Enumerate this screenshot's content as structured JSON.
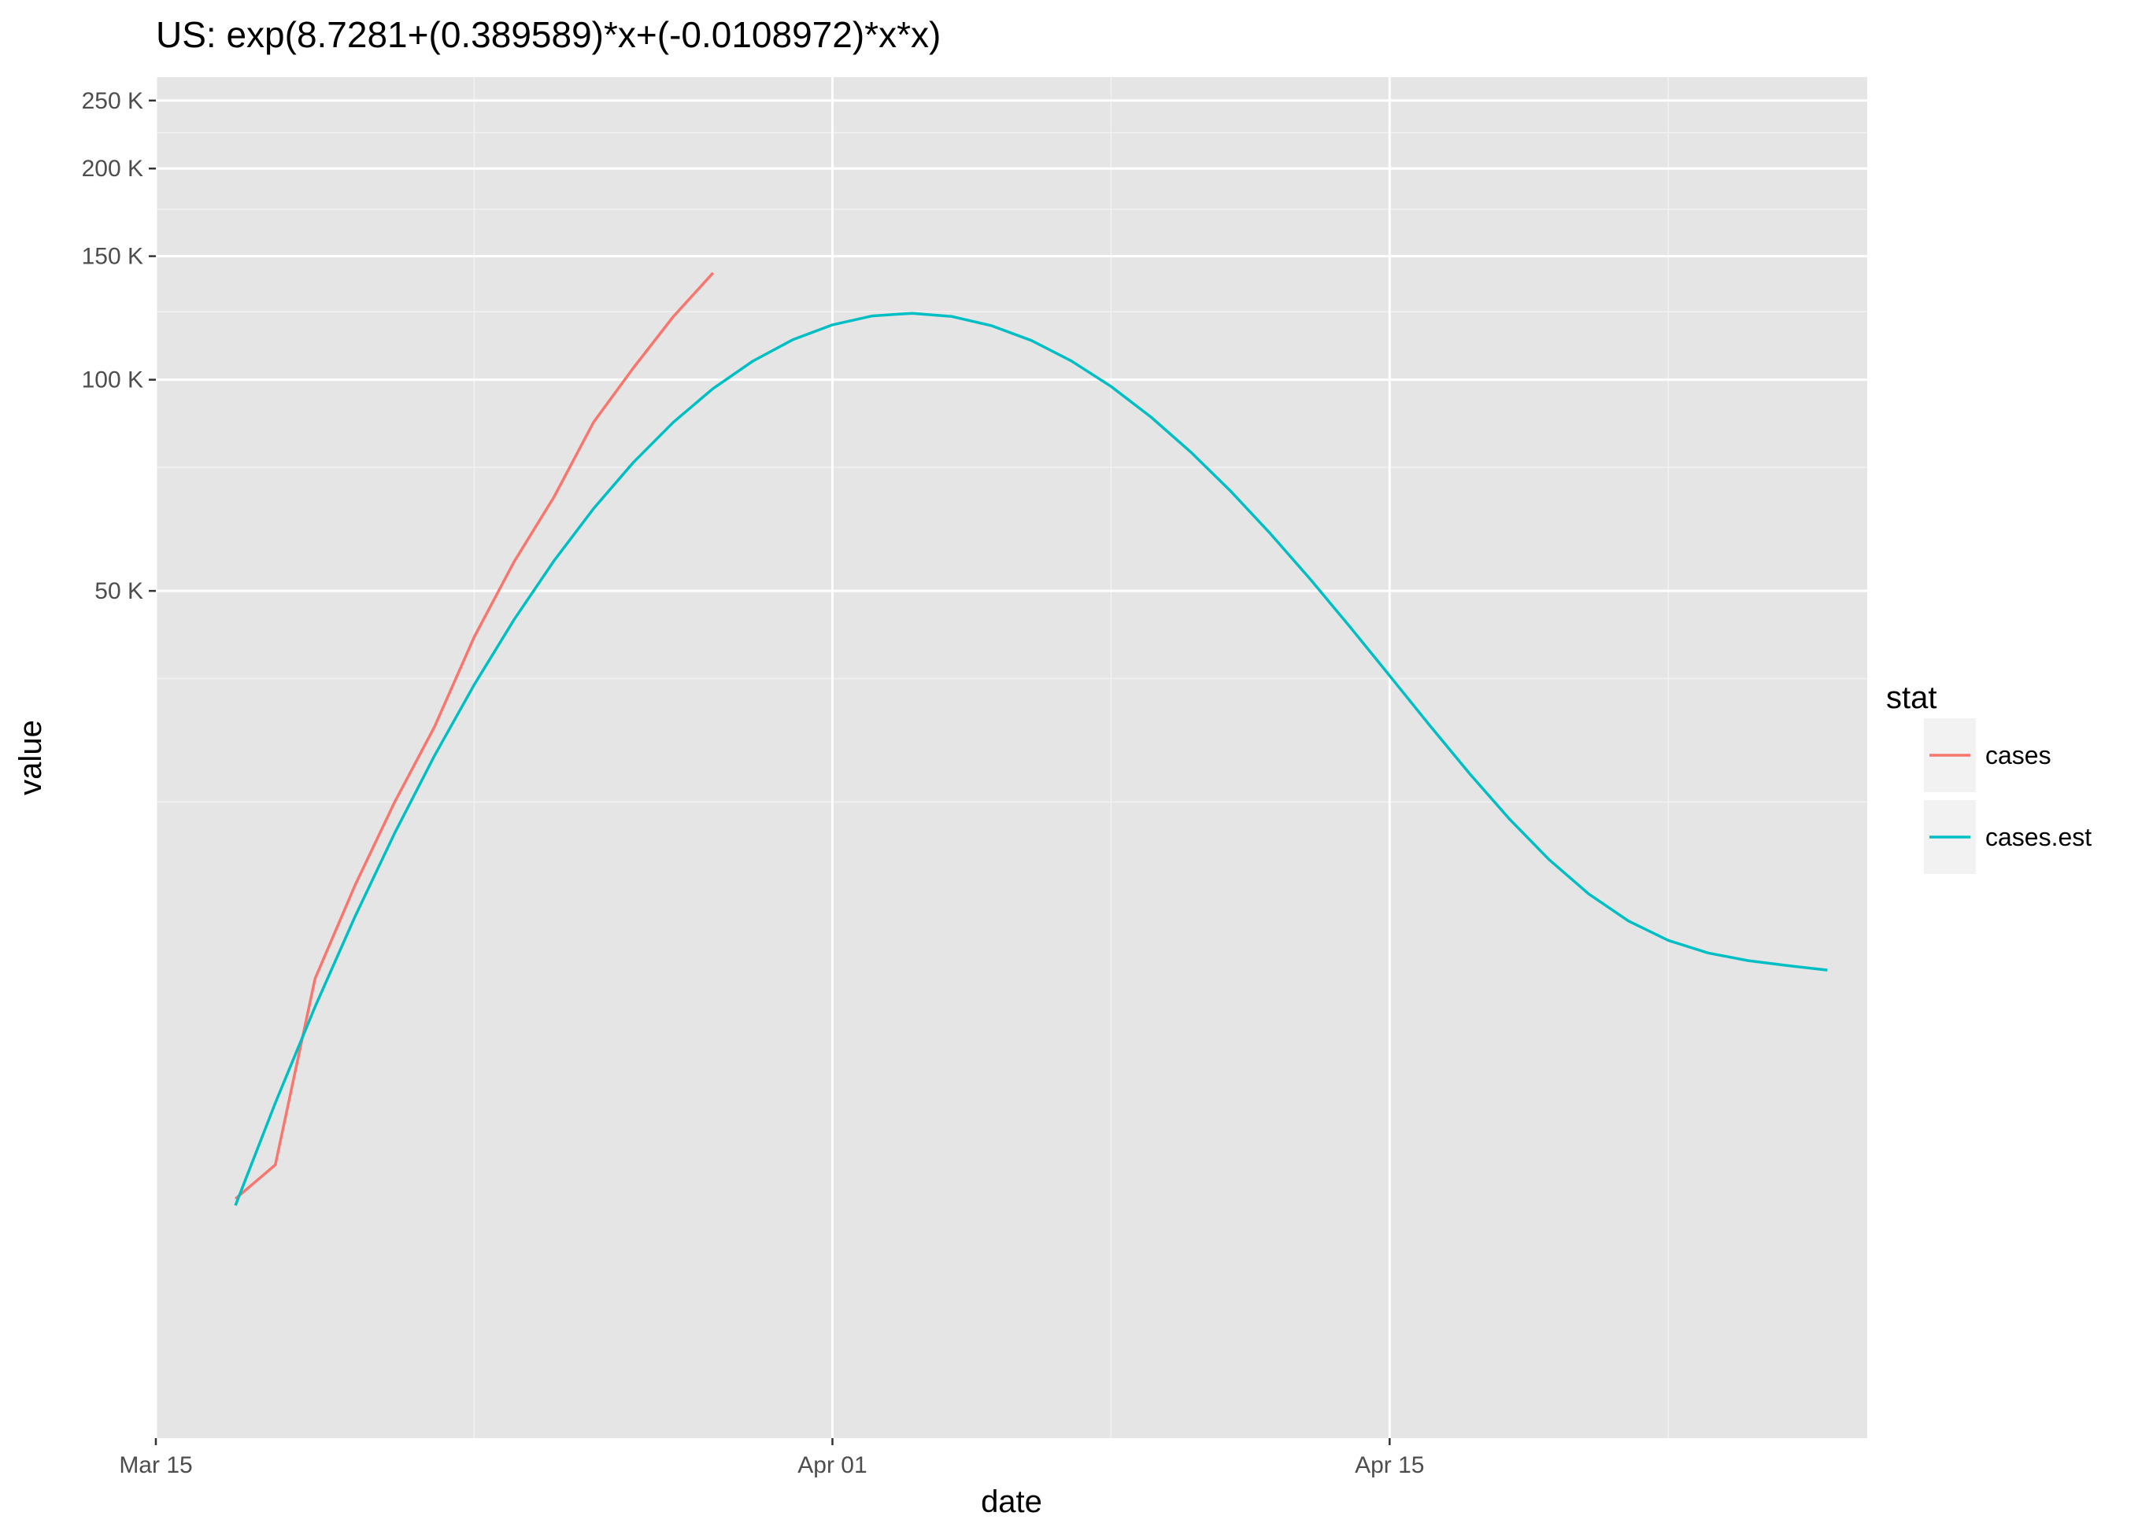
{
  "chart_data": {
    "type": "line",
    "title": "US: exp(8.7281+(0.389589)*x+(-0.0108972)*x*x)",
    "xlabel": "date",
    "ylabel": "value",
    "y_scale": "log",
    "x_start_date": "2020-03-15",
    "x_ticks": [
      {
        "label": "Mar 15",
        "date": "2020-03-15"
      },
      {
        "label": "Apr 01",
        "date": "2020-04-01"
      },
      {
        "label": "Apr 15",
        "date": "2020-04-15"
      }
    ],
    "x_minor_dates": [
      "2020-03-23",
      "2020-04-08",
      "2020-04-22"
    ],
    "xlim": [
      "2020-03-15",
      "2020-04-27"
    ],
    "y_ticks": [
      {
        "label": "50 K",
        "value": 50000
      },
      {
        "label": "100 K",
        "value": 100000
      },
      {
        "label": "150 K",
        "value": 150000
      },
      {
        "label": "200 K",
        "value": 200000
      },
      {
        "label": "250 K",
        "value": 250000
      }
    ],
    "y_minor": [
      25000,
      37500,
      75000,
      125000,
      175000,
      225000
    ],
    "ylim": [
      3100,
      270000
    ],
    "grid": true,
    "legend": {
      "title": "stat",
      "position": "right"
    },
    "series": [
      {
        "name": "cases",
        "color": "#F8766D",
        "x": [
          "2020-03-17",
          "2020-03-18",
          "2020-03-19",
          "2020-03-20",
          "2020-03-21",
          "2020-03-22",
          "2020-03-23",
          "2020-03-24",
          "2020-03-25",
          "2020-03-26",
          "2020-03-27",
          "2020-03-28",
          "2020-03-29"
        ],
        "values": [
          6800,
          7600,
          14000,
          19000,
          25000,
          32000,
          43000,
          55000,
          68000,
          87000,
          104000,
          123000,
          142000
        ]
      },
      {
        "name": "cases.est",
        "color": "#00BFC4",
        "x": [
          "2020-03-17",
          "2020-03-18",
          "2020-03-19",
          "2020-03-20",
          "2020-03-21",
          "2020-03-22",
          "2020-03-23",
          "2020-03-24",
          "2020-03-25",
          "2020-03-26",
          "2020-03-27",
          "2020-03-28",
          "2020-03-29",
          "2020-03-30",
          "2020-03-31",
          "2020-04-01",
          "2020-04-02",
          "2020-04-03",
          "2020-04-04",
          "2020-04-05",
          "2020-04-06",
          "2020-04-07",
          "2020-04-08",
          "2020-04-09",
          "2020-04-10",
          "2020-04-11",
          "2020-04-12",
          "2020-04-13",
          "2020-04-14",
          "2020-04-15",
          "2020-04-16",
          "2020-04-17",
          "2020-04-18",
          "2020-04-19",
          "2020-04-20",
          "2020-04-21",
          "2020-04-22",
          "2020-04-23",
          "2020-04-24",
          "2020-04-25",
          "2020-04-26"
        ],
        "values": [
          6653,
          9311,
          12768,
          17152,
          22573,
          29104,
          36763,
          45493,
          55155,
          65518,
          76254,
          86952,
          97139,
          106315,
          113994,
          119753,
          123278,
          124388,
          123056,
          119413,
          113728,
          106379,
          97814,
          88505,
          78907,
          69420,
          60370,
          51999,
          44465,
          37852,
          32197,
          27487,
          23684,
          20717,
          18497,
          16923,
          15880,
          15236,
          14859,
          14619,
          14404
        ]
      }
    ]
  }
}
